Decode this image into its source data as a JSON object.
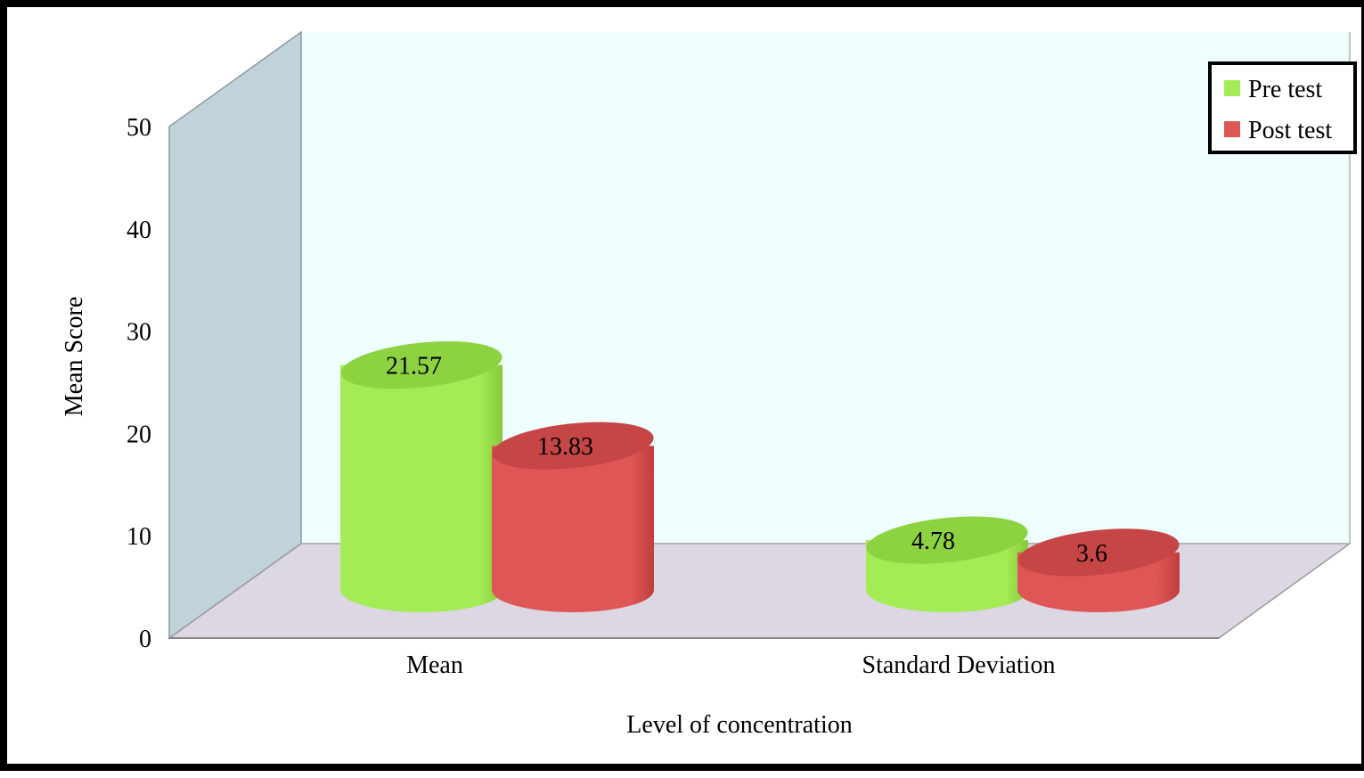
{
  "chart_data": {
    "type": "bar",
    "style": "3d-cylinder",
    "title": "",
    "xlabel": "Level of concentration",
    "ylabel": "Mean Score",
    "ylim": [
      0,
      50
    ],
    "yticks": [
      0,
      10,
      20,
      30,
      40,
      50
    ],
    "grid": false,
    "legend_position": "top-right",
    "categories": [
      "Mean",
      "Standard Deviation"
    ],
    "series": [
      {
        "name": "Pre test",
        "values": [
          21.57,
          4.78
        ],
        "labels": [
          "21.57",
          "4.78"
        ],
        "color": "#a3ec55"
      },
      {
        "name": "Post test",
        "values": [
          13.83,
          3.6
        ],
        "labels": [
          "13.83",
          "3.6"
        ],
        "color": "#de5656"
      }
    ],
    "colors": {
      "back_wall": "#eefdfd",
      "side_wall": "#c1d3da",
      "floor": "#ddd6e3",
      "pre_side": "#86c93b",
      "pre_top": "#8dd341",
      "post_side": "#c03e3e",
      "post_top": "#c64646"
    }
  }
}
